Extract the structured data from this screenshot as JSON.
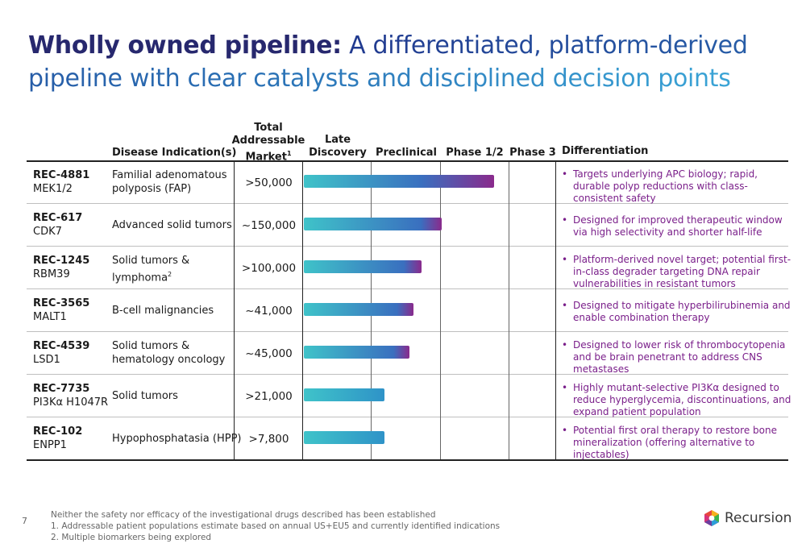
{
  "title": {
    "bold": "Wholly owned pipeline:",
    "rest": "A differentiated, platform-derived pipeline with clear catalysts and disciplined decision points"
  },
  "headers": {
    "disease": "Disease Indication(s)",
    "market_1": "Total",
    "market_2": "Addressable",
    "market_3": "Market",
    "market_sup": "1",
    "late_1": "Late",
    "late_2": "Discovery",
    "preclinical": "Preclinical",
    "phase12": "Phase 1/2",
    "phase3": "Phase 3",
    "differentiation": "Differentiation"
  },
  "rows": [
    {
      "code": "REC-4881",
      "target": "MEK1/2",
      "disease_1": "Familial adenomatous",
      "disease_2": "polyposis (FAP)",
      "disease_sup": "",
      "market": ">50,000",
      "progress": 0.94,
      "diff": "Targets underlying APC biology; rapid, durable polyp reductions with class-consistent safety"
    },
    {
      "code": "REC-617",
      "target": "CDK7",
      "disease_1": "Advanced solid tumors",
      "disease_2": "",
      "disease_sup": "",
      "market": "~150,000",
      "progress": 0.68,
      "diff": "Designed for improved therapeutic window via high selectivity and shorter half-life"
    },
    {
      "code": "REC-1245",
      "target": "RBM39",
      "disease_1": "Solid tumors &",
      "disease_2": "lymphoma",
      "disease_sup": "2",
      "market": ">100,000",
      "progress": 0.58,
      "diff": "Platform-derived novel target; potential first-in-class degrader targeting DNA repair vulnerabilities in resistant tumors"
    },
    {
      "code": "REC-3565",
      "target": "MALT1",
      "disease_1": "B-cell malignancies",
      "disease_2": "",
      "disease_sup": "",
      "market": "~41,000",
      "progress": 0.54,
      "diff": "Designed to mitigate hyperbilirubinemia and enable combination therapy"
    },
    {
      "code": "REC-4539",
      "target": "LSD1",
      "disease_1": "Solid tumors &",
      "disease_2": "hematology oncology",
      "disease_sup": "",
      "market": "~45,000",
      "progress": 0.52,
      "diff": "Designed to lower risk of thrombocytopenia and be brain penetrant to address CNS metastases"
    },
    {
      "code": "REC-7735",
      "target": "PI3Kα H1047R",
      "disease_1": "Solid tumors",
      "disease_2": "",
      "disease_sup": "",
      "market": ">21,000",
      "progress": 0.4,
      "diff": "Highly mutant-selective PI3Kα designed to reduce hyperglycemia, discontinuations, and expand patient population"
    },
    {
      "code": "REC-102",
      "target": "ENPP1",
      "disease_1": "Hypophosphatasia (HPP)",
      "disease_2": "",
      "disease_sup": "",
      "market": ">7,800",
      "progress": 0.4,
      "diff": "Potential first oral therapy to restore bone mineralization (offering alternative to injectables)"
    }
  ],
  "bullet": "•",
  "page_number": "7",
  "footnotes": [
    "Neither the safety nor efficacy of the investigational drugs described has been established",
    "1. Addressable patient populations estimate based on annual US+EU5 and currently identified indications",
    "2. Multiple biomarkers being explored"
  ],
  "logo_text": "Recursion",
  "colors": {
    "bar_start": "#3fc3c9",
    "bar_mid": "#3a6fbf",
    "bar_end": "#8a2a8c",
    "diff_text": "#7a1f8a",
    "title_dark": "#27286e"
  }
}
